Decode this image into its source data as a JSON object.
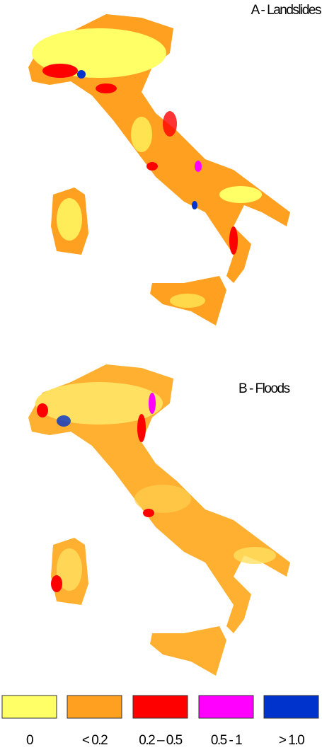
{
  "panels": [
    {
      "title": "A - Landslides"
    },
    {
      "title": "B - Floods"
    }
  ],
  "legend": [
    {
      "label": "0",
      "color": "#ffff66"
    },
    {
      "label": "< 0.2",
      "color": "#ffa020"
    },
    {
      "label": "0.2 – 0.5",
      "color": "#ff0000"
    },
    {
      "label": "0.5 - 1",
      "color": "#ff00ff"
    },
    {
      "label": "> 1.0",
      "color": "#0033cc"
    }
  ]
}
